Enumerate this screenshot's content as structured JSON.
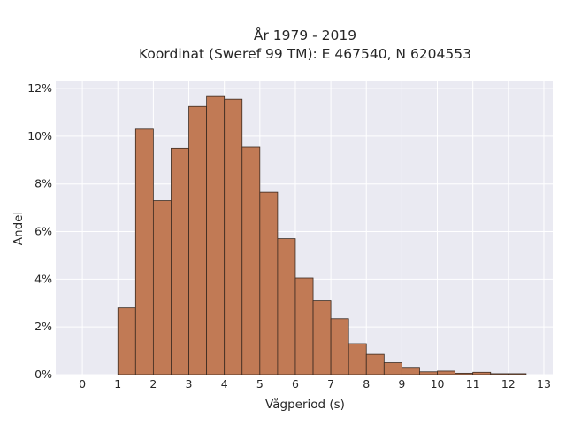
{
  "chart_data": {
    "type": "bar",
    "title_line1": "År 1979 - 2019",
    "title_line2": "Koordinat (Sweref 99 TM): E 467540, N 6204553",
    "xlabel": "Vågperiod (s)",
    "ylabel": "Andel",
    "xlim": [
      -0.75,
      13.25
    ],
    "ylim": [
      0,
      12.3
    ],
    "bin_width": 0.5,
    "x_ticks": [
      "0",
      "1",
      "2",
      "3",
      "4",
      "5",
      "6",
      "7",
      "8",
      "9",
      "10",
      "11",
      "12",
      "13"
    ],
    "y_ticks": [
      "0%",
      "2%",
      "4%",
      "6%",
      "8%",
      "10%",
      "12%"
    ],
    "bin_starts": [
      1.0,
      1.5,
      2.0,
      2.5,
      3.0,
      3.5,
      4.0,
      4.5,
      5.0,
      5.5,
      6.0,
      6.5,
      7.0,
      7.5,
      8.0,
      8.5,
      9.0,
      9.5,
      10.0,
      10.5,
      11.0,
      11.5,
      12.0
    ],
    "values": [
      2.8,
      10.3,
      7.3,
      9.5,
      11.25,
      11.7,
      11.55,
      9.55,
      7.65,
      5.7,
      4.05,
      3.1,
      2.35,
      1.3,
      0.85,
      0.5,
      0.27,
      0.12,
      0.15,
      0.06,
      0.1,
      0.04,
      0.04
    ],
    "grid": true,
    "colors": {
      "bar": "#c17a55",
      "bar_edge": "#3a2a20",
      "background": "#eaeaf2",
      "grid": "#ffffff"
    }
  }
}
